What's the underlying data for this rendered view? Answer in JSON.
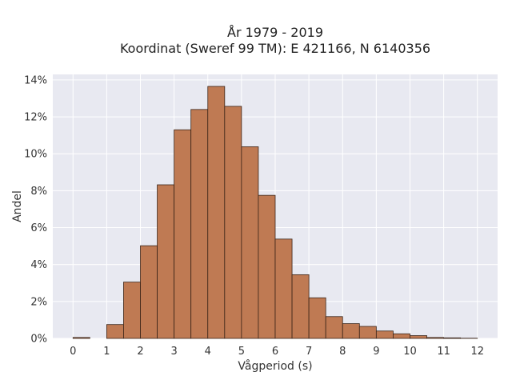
{
  "chart_data": {
    "type": "bar",
    "title_lines": [
      "År 1979 - 2019",
      "Koordinat (Sweref 99 TM): E 421166, N 6140356"
    ],
    "xlabel": "Vågperiod (s)",
    "ylabel": "Andel",
    "x_ticks": [
      "0",
      "1",
      "2",
      "3",
      "4",
      "5",
      "6",
      "7",
      "8",
      "9",
      "10",
      "11",
      "12"
    ],
    "y_ticks": [
      "0%",
      "2%",
      "4%",
      "6%",
      "8%",
      "10%",
      "12%",
      "14%"
    ],
    "xlim": [
      -0.6,
      12.6
    ],
    "ylim": [
      0,
      14.3
    ],
    "bin_width": 0.5,
    "bins": [
      {
        "x0": 0.0,
        "value": 0.05
      },
      {
        "x0": 0.5,
        "value": 0.0
      },
      {
        "x0": 1.0,
        "value": 0.75
      },
      {
        "x0": 1.5,
        "value": 3.05
      },
      {
        "x0": 2.0,
        "value": 5.02
      },
      {
        "x0": 2.5,
        "value": 8.32
      },
      {
        "x0": 3.0,
        "value": 11.3
      },
      {
        "x0": 3.5,
        "value": 12.4
      },
      {
        "x0": 4.0,
        "value": 13.65
      },
      {
        "x0": 4.5,
        "value": 12.57
      },
      {
        "x0": 5.0,
        "value": 10.38
      },
      {
        "x0": 5.5,
        "value": 7.75
      },
      {
        "x0": 6.0,
        "value": 5.38
      },
      {
        "x0": 6.5,
        "value": 3.45
      },
      {
        "x0": 7.0,
        "value": 2.2
      },
      {
        "x0": 7.5,
        "value": 1.18
      },
      {
        "x0": 8.0,
        "value": 0.8
      },
      {
        "x0": 8.5,
        "value": 0.65
      },
      {
        "x0": 9.0,
        "value": 0.4
      },
      {
        "x0": 9.5,
        "value": 0.25
      },
      {
        "x0": 10.0,
        "value": 0.15
      },
      {
        "x0": 10.5,
        "value": 0.05
      },
      {
        "x0": 11.0,
        "value": 0.03
      },
      {
        "x0": 11.5,
        "value": 0.01
      }
    ],
    "grid": true,
    "colors": {
      "bar_fill": "#bf7a53",
      "bar_edge": "#3a2418",
      "plot_bg": "#e8e9f1",
      "grid": "#ffffff"
    }
  }
}
